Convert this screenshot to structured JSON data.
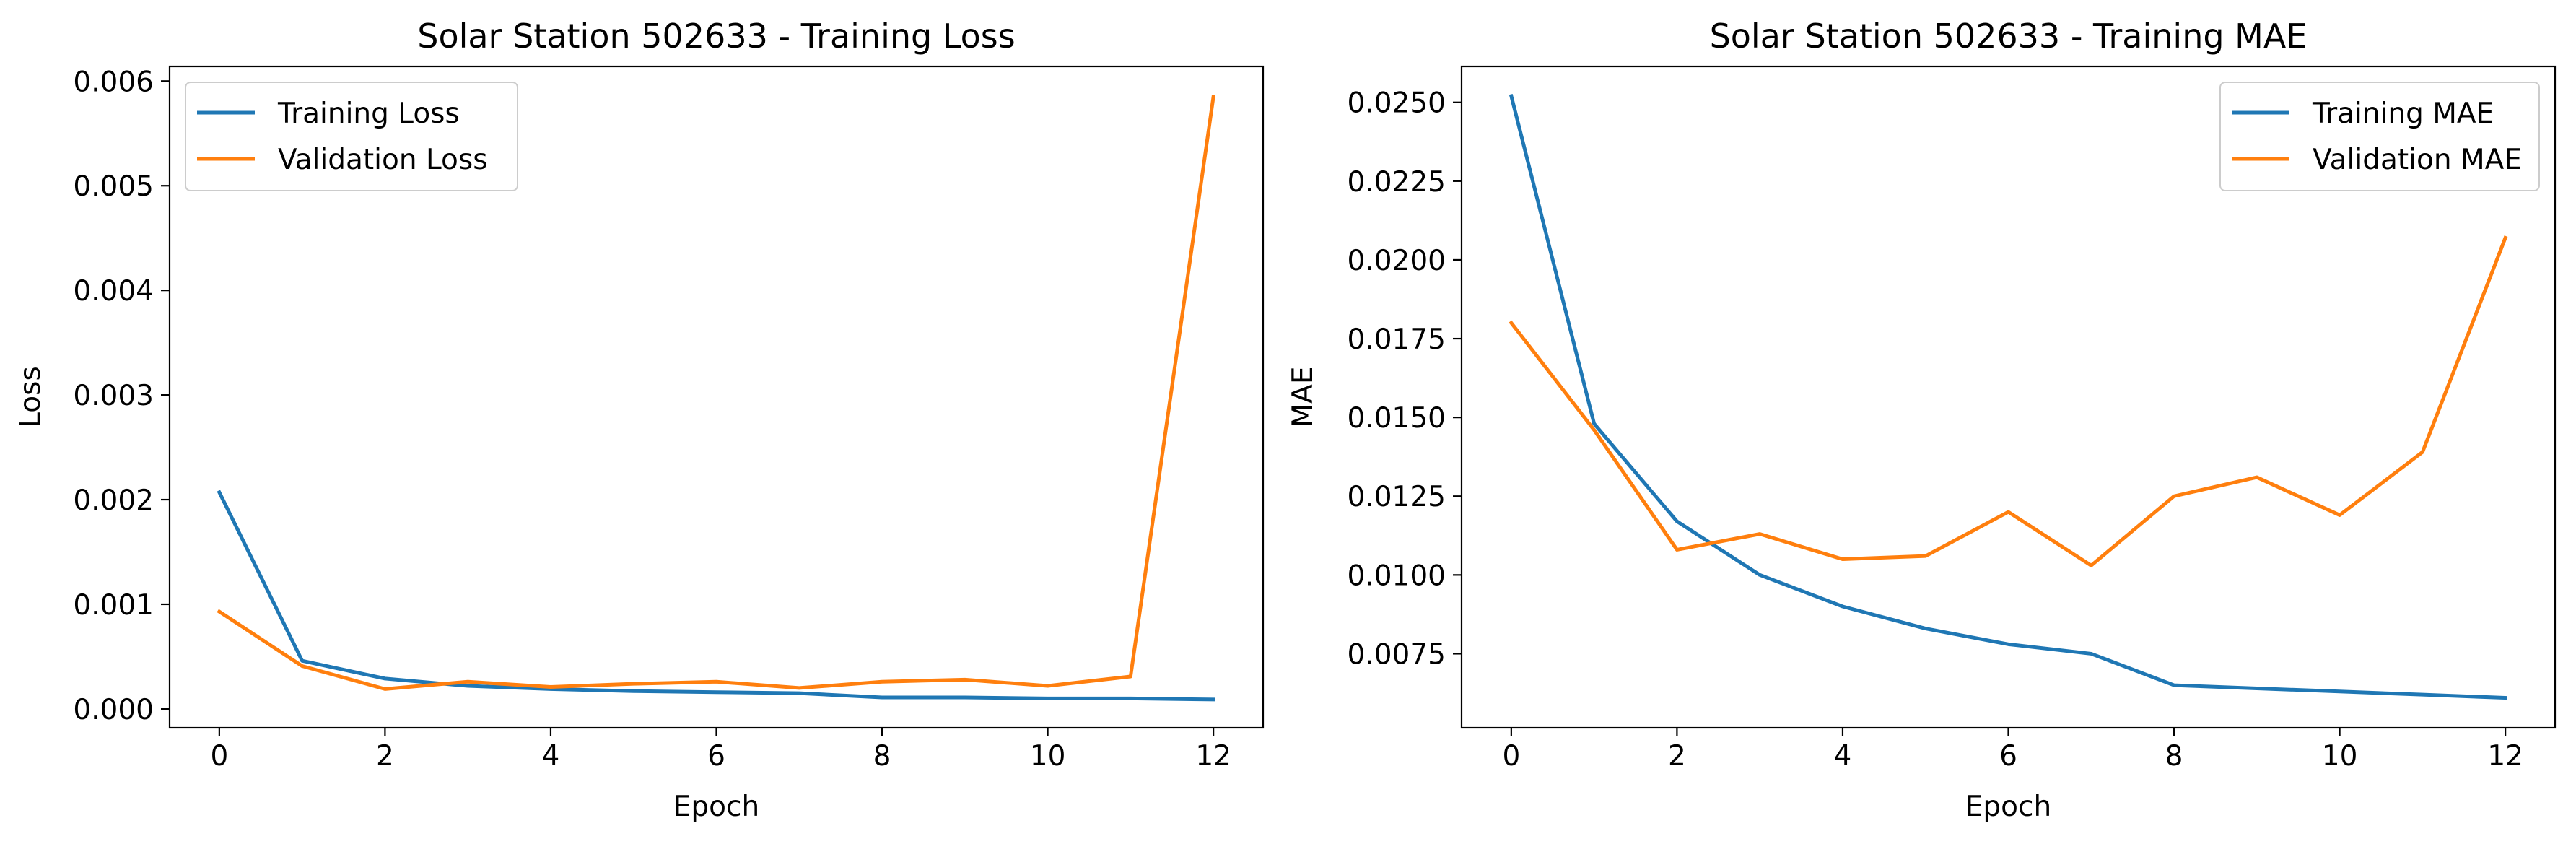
{
  "chart_data": [
    {
      "type": "line",
      "title": "Solar Station 502633 - Training Loss",
      "xlabel": "Epoch",
      "ylabel": "Loss",
      "x": [
        0,
        1,
        2,
        3,
        4,
        5,
        6,
        7,
        8,
        9,
        10,
        11,
        12
      ],
      "xlim": [
        -0.6,
        12.6
      ],
      "ylim": [
        -0.00018,
        0.00614
      ],
      "xticks": [
        0,
        2,
        4,
        6,
        8,
        10,
        12
      ],
      "xtick_labels": [
        "0",
        "2",
        "4",
        "6",
        "8",
        "10",
        "12"
      ],
      "yticks": [
        0,
        0.001,
        0.002,
        0.003,
        0.004,
        0.005,
        0.006
      ],
      "ytick_labels": [
        "0.000",
        "0.001",
        "0.002",
        "0.003",
        "0.004",
        "0.005",
        "0.006"
      ],
      "grid": false,
      "legend_position": "upper-left",
      "series": [
        {
          "name": "Training Loss",
          "color": "#1f77b4",
          "values": [
            0.00207,
            0.00046,
            0.00029,
            0.00022,
            0.00019,
            0.00017,
            0.00016,
            0.00015,
            0.00011,
            0.00011,
            0.0001,
            0.0001,
            9e-05
          ]
        },
        {
          "name": "Validation Loss",
          "color": "#ff7f0e",
          "values": [
            0.00093,
            0.00041,
            0.00019,
            0.00026,
            0.00021,
            0.00024,
            0.00026,
            0.0002,
            0.00026,
            0.00028,
            0.00022,
            0.00031,
            0.00585
          ]
        }
      ]
    },
    {
      "type": "line",
      "title": "Solar Station 502633 - Training MAE",
      "xlabel": "Epoch",
      "ylabel": "MAE",
      "x": [
        0,
        1,
        2,
        3,
        4,
        5,
        6,
        7,
        8,
        9,
        10,
        11,
        12
      ],
      "xlim": [
        -0.6,
        12.6
      ],
      "ylim": [
        0.00515,
        0.02614
      ],
      "xticks": [
        0,
        2,
        4,
        6,
        8,
        10,
        12
      ],
      "xtick_labels": [
        "0",
        "2",
        "4",
        "6",
        "8",
        "10",
        "12"
      ],
      "yticks": [
        0.0075,
        0.01,
        0.0125,
        0.015,
        0.0175,
        0.02,
        0.0225,
        0.025
      ],
      "ytick_labels": [
        "0.0075",
        "0.0100",
        "0.0125",
        "0.0150",
        "0.0175",
        "0.0200",
        "0.0225",
        "0.0250"
      ],
      "grid": false,
      "legend_position": "upper-right",
      "series": [
        {
          "name": "Training MAE",
          "color": "#1f77b4",
          "values": [
            0.0252,
            0.0148,
            0.0117,
            0.01,
            0.009,
            0.0083,
            0.0078,
            0.0075,
            0.0065,
            0.0064,
            0.0063,
            0.0062,
            0.0061
          ]
        },
        {
          "name": "Validation MAE",
          "color": "#ff7f0e",
          "values": [
            0.018,
            0.0146,
            0.0108,
            0.0113,
            0.0105,
            0.0106,
            0.012,
            0.0103,
            0.0125,
            0.0131,
            0.0119,
            0.0139,
            0.0207
          ]
        }
      ]
    }
  ]
}
